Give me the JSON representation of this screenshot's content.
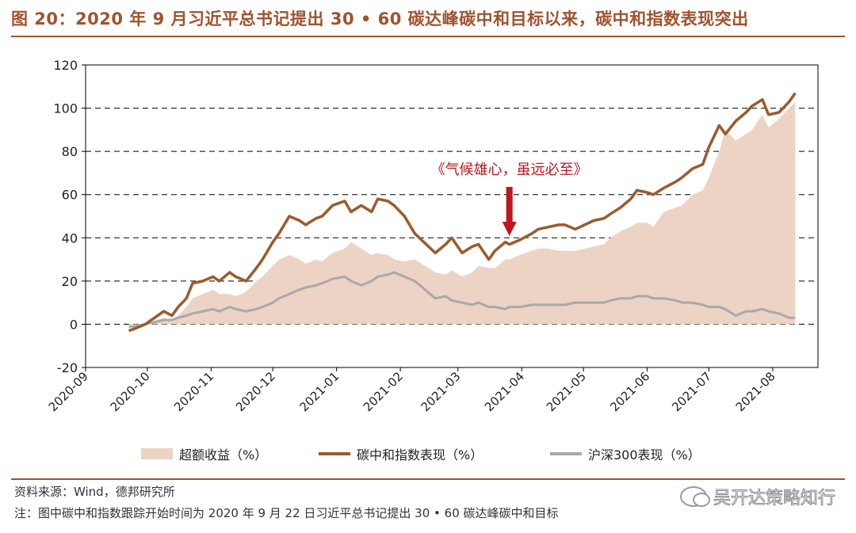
{
  "title": "图 20：2020 年 9 月习近平总书记提出 30 • 60 碳达峰碳中和目标以来，碳中和指数表现突出",
  "source": "资料来源：Wind，德邦研究所",
  "note": "注：图中碳中和指数跟踪开始时间为 2020 年 9 月 22 日习近平总书记提出 30 • 60 碳达峰碳中和目标",
  "watermark": "吴开达策略知行",
  "colors": {
    "excess": "#ecd3c3",
    "index": "#9c5a2c",
    "hs300": "#a9a9a9",
    "arrow": "#c0161c",
    "annotation": "#c0161c",
    "accent": "#a0522d"
  },
  "chart_data": {
    "type": "area",
    "annotation": "《气候雄心，虽远必至》",
    "annotation_x": "2021-03-26",
    "ylim": [
      -20,
      120
    ],
    "yticks": [
      -20,
      0,
      20,
      40,
      60,
      80,
      100,
      120
    ],
    "xticks": [
      "2020-09",
      "2020-10",
      "2020-11",
      "2020-12",
      "2021-01",
      "2021-02",
      "2021-03",
      "2021-04",
      "2021-05",
      "2021-06",
      "2021-07",
      "2021-08"
    ],
    "grid": "horizontal dashed",
    "legend": "bottom",
    "dates": [
      "2020-09-22",
      "2020-09-25",
      "2020-09-30",
      "2020-10-09",
      "2020-10-13",
      "2020-10-16",
      "2020-10-20",
      "2020-10-23",
      "2020-10-28",
      "2020-11-02",
      "2020-11-05",
      "2020-11-10",
      "2020-11-13",
      "2020-11-18",
      "2020-11-23",
      "2020-11-26",
      "2020-12-01",
      "2020-12-04",
      "2020-12-09",
      "2020-12-14",
      "2020-12-17",
      "2020-12-22",
      "2020-12-25",
      "2020-12-30",
      "2021-01-05",
      "2021-01-08",
      "2021-01-13",
      "2021-01-18",
      "2021-01-21",
      "2021-01-26",
      "2021-01-29",
      "2021-02-03",
      "2021-02-08",
      "2021-02-18",
      "2021-02-23",
      "2021-02-26",
      "2021-03-03",
      "2021-03-08",
      "2021-03-11",
      "2021-03-16",
      "2021-03-19",
      "2021-03-24",
      "2021-03-26",
      "2021-03-31",
      "2021-04-06",
      "2021-04-09",
      "2021-04-14",
      "2021-04-19",
      "2021-04-22",
      "2021-04-27",
      "2021-05-06",
      "2021-05-11",
      "2021-05-14",
      "2021-05-19",
      "2021-05-24",
      "2021-05-27",
      "2021-06-01",
      "2021-06-04",
      "2021-06-09",
      "2021-06-15",
      "2021-06-18",
      "2021-06-23",
      "2021-06-28",
      "2021-07-01",
      "2021-07-06",
      "2021-07-09",
      "2021-07-14",
      "2021-07-19",
      "2021-07-22",
      "2021-07-27",
      "2021-07-30",
      "2021-08-04",
      "2021-08-09",
      "2021-08-12"
    ],
    "series": [
      {
        "name": "超额收益（%）",
        "kind": "area",
        "values": [
          -2,
          -1,
          0,
          3,
          2,
          4,
          8,
          12,
          14,
          16,
          14,
          14,
          13,
          15,
          20,
          22,
          27,
          30,
          32,
          30,
          28,
          30,
          29,
          33,
          35,
          38,
          35,
          32,
          33,
          32,
          30,
          29,
          30,
          24,
          23,
          25,
          22,
          24,
          27,
          26,
          26,
          30,
          30,
          32,
          34,
          35,
          35,
          34,
          34,
          34,
          36,
          37,
          40,
          43,
          45,
          47,
          47,
          45,
          52,
          54,
          55,
          60,
          62,
          68,
          80,
          90,
          85,
          88,
          90,
          97,
          91,
          95,
          100,
          103
        ]
      },
      {
        "name": "碳中和指数表现（%）",
        "kind": "line",
        "values": [
          -3,
          -2,
          0,
          6,
          4,
          8,
          12,
          19,
          20,
          22,
          20,
          24,
          22,
          20,
          26,
          30,
          38,
          42,
          50,
          48,
          46,
          49,
          50,
          55,
          57,
          52,
          55,
          52,
          58,
          57,
          55,
          50,
          42,
          33,
          37,
          40,
          33,
          36,
          37,
          30,
          34,
          38,
          37,
          39,
          42,
          44,
          45,
          46,
          46,
          44,
          48,
          49,
          51,
          54,
          58,
          62,
          61,
          60,
          63,
          66,
          68,
          72,
          74,
          82,
          92,
          88,
          94,
          98,
          101,
          104,
          97,
          98,
          103,
          107
        ]
      },
      {
        "name": "沪深300表现（%）",
        "kind": "line",
        "values": [
          -1,
          -1,
          0,
          2,
          2,
          3,
          4,
          5,
          6,
          7,
          6,
          8,
          7,
          6,
          7,
          8,
          10,
          12,
          14,
          16,
          17,
          18,
          19,
          21,
          22,
          20,
          18,
          20,
          22,
          23,
          24,
          22,
          20,
          12,
          13,
          11,
          10,
          9,
          10,
          8,
          8,
          7,
          8,
          8,
          9,
          9,
          9,
          9,
          9,
          10,
          10,
          10,
          11,
          12,
          12,
          13,
          13,
          12,
          12,
          11,
          10,
          10,
          9,
          8,
          8,
          7,
          4,
          6,
          6,
          7,
          6,
          5,
          3,
          3
        ]
      }
    ]
  }
}
